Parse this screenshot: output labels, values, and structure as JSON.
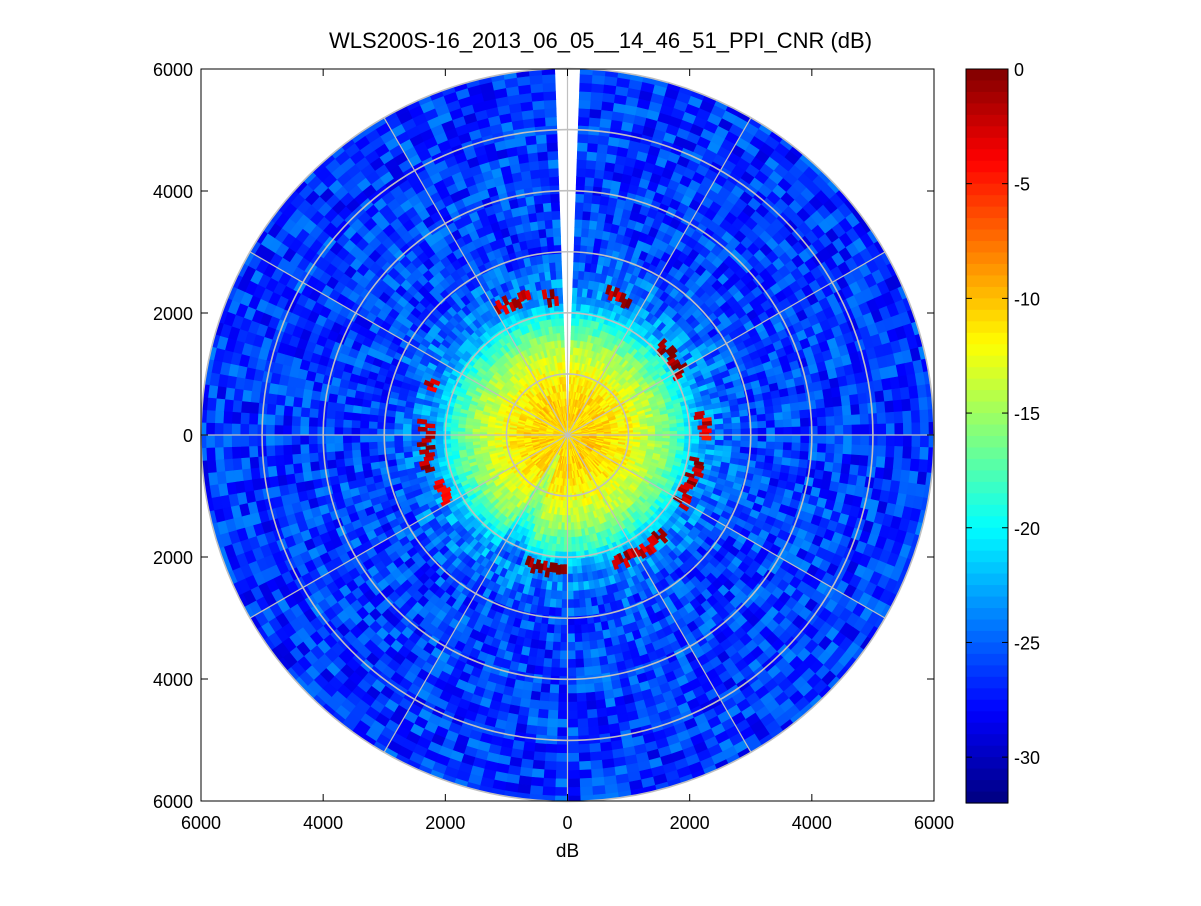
{
  "chart_data": {
    "type": "heatmap",
    "title": "WLS200S-16_2013_06_05__14_46_51_PPI_CNR (dB)",
    "xlabel": "dB",
    "ylabel": "",
    "xlim": [
      -6000,
      6000
    ],
    "ylim": [
      -6000,
      6000
    ],
    "x_ticks": [
      {
        "value": -6000,
        "label": "6000"
      },
      {
        "value": -4000,
        "label": "4000"
      },
      {
        "value": -2000,
        "label": "2000"
      },
      {
        "value": 0,
        "label": "0"
      },
      {
        "value": 2000,
        "label": "2000"
      },
      {
        "value": 4000,
        "label": "4000"
      },
      {
        "value": 6000,
        "label": "6000"
      }
    ],
    "y_ticks": [
      {
        "value": 6000,
        "label": "6000"
      },
      {
        "value": 4000,
        "label": "4000"
      },
      {
        "value": 2000,
        "label": "2000"
      },
      {
        "value": 0,
        "label": "0"
      },
      {
        "value": -2000,
        "label": "2000"
      },
      {
        "value": -4000,
        "label": "4000"
      },
      {
        "value": -6000,
        "label": "6000"
      }
    ],
    "polar_rings_m": [
      1000,
      2000,
      3000,
      4000,
      5000,
      6000
    ],
    "polar_spokes_deg": [
      0,
      30,
      60,
      90,
      120,
      150,
      180,
      210,
      240,
      270,
      300,
      330
    ],
    "max_range_m": 6000,
    "missing_sector_deg": [
      358.5,
      1.5
    ],
    "field_profile": [
      {
        "range_m": 0,
        "cnr_db": -11
      },
      {
        "range_m": 500,
        "cnr_db": -10.5
      },
      {
        "range_m": 1000,
        "cnr_db": -12
      },
      {
        "range_m": 1500,
        "cnr_db": -15
      },
      {
        "range_m": 1900,
        "cnr_db": -19
      },
      {
        "range_m": 2200,
        "cnr_db": -23
      },
      {
        "range_m": 3000,
        "cnr_db": -26
      },
      {
        "range_m": 6000,
        "cnr_db": -26.5
      }
    ],
    "hard_target_arcs": [
      {
        "from_deg": 330,
        "to_deg": 345,
        "range_m": 2350,
        "cnr_db": -2
      },
      {
        "from_deg": 350,
        "to_deg": 355,
        "range_m": 2250,
        "cnr_db": -1
      },
      {
        "from_deg": 15,
        "to_deg": 25,
        "range_m": 2400,
        "cnr_db": -2
      },
      {
        "from_deg": 45,
        "to_deg": 62,
        "range_m": 2100,
        "cnr_db": -1
      },
      {
        "from_deg": 80,
        "to_deg": 92,
        "range_m": 2200,
        "cnr_db": -3
      },
      {
        "from_deg": 100,
        "to_deg": 122,
        "range_m": 2150,
        "cnr_db": -1
      },
      {
        "from_deg": 135,
        "to_deg": 160,
        "range_m": 2250,
        "cnr_db": -2
      },
      {
        "from_deg": 180,
        "to_deg": 198,
        "range_m": 2200,
        "cnr_db": 0
      },
      {
        "from_deg": 240,
        "to_deg": 250,
        "range_m": 2200,
        "cnr_db": -4
      },
      {
        "from_deg": 255,
        "to_deg": 275,
        "range_m": 2300,
        "cnr_db": -1
      },
      {
        "from_deg": 288,
        "to_deg": 292,
        "range_m": 2350,
        "cnr_db": -3
      }
    ],
    "colorbar": {
      "colormap": "jet",
      "range": [
        -32,
        0
      ],
      "ticks": [
        {
          "value": 0,
          "label": "0"
        },
        {
          "value": -5,
          "label": "-5"
        },
        {
          "value": -10,
          "label": "-10"
        },
        {
          "value": -15,
          "label": "-15"
        },
        {
          "value": -20,
          "label": "-20"
        },
        {
          "value": -25,
          "label": "-25"
        },
        {
          "value": -30,
          "label": "-30"
        }
      ]
    },
    "grid": true,
    "grid_color": "#c0c0c0"
  }
}
